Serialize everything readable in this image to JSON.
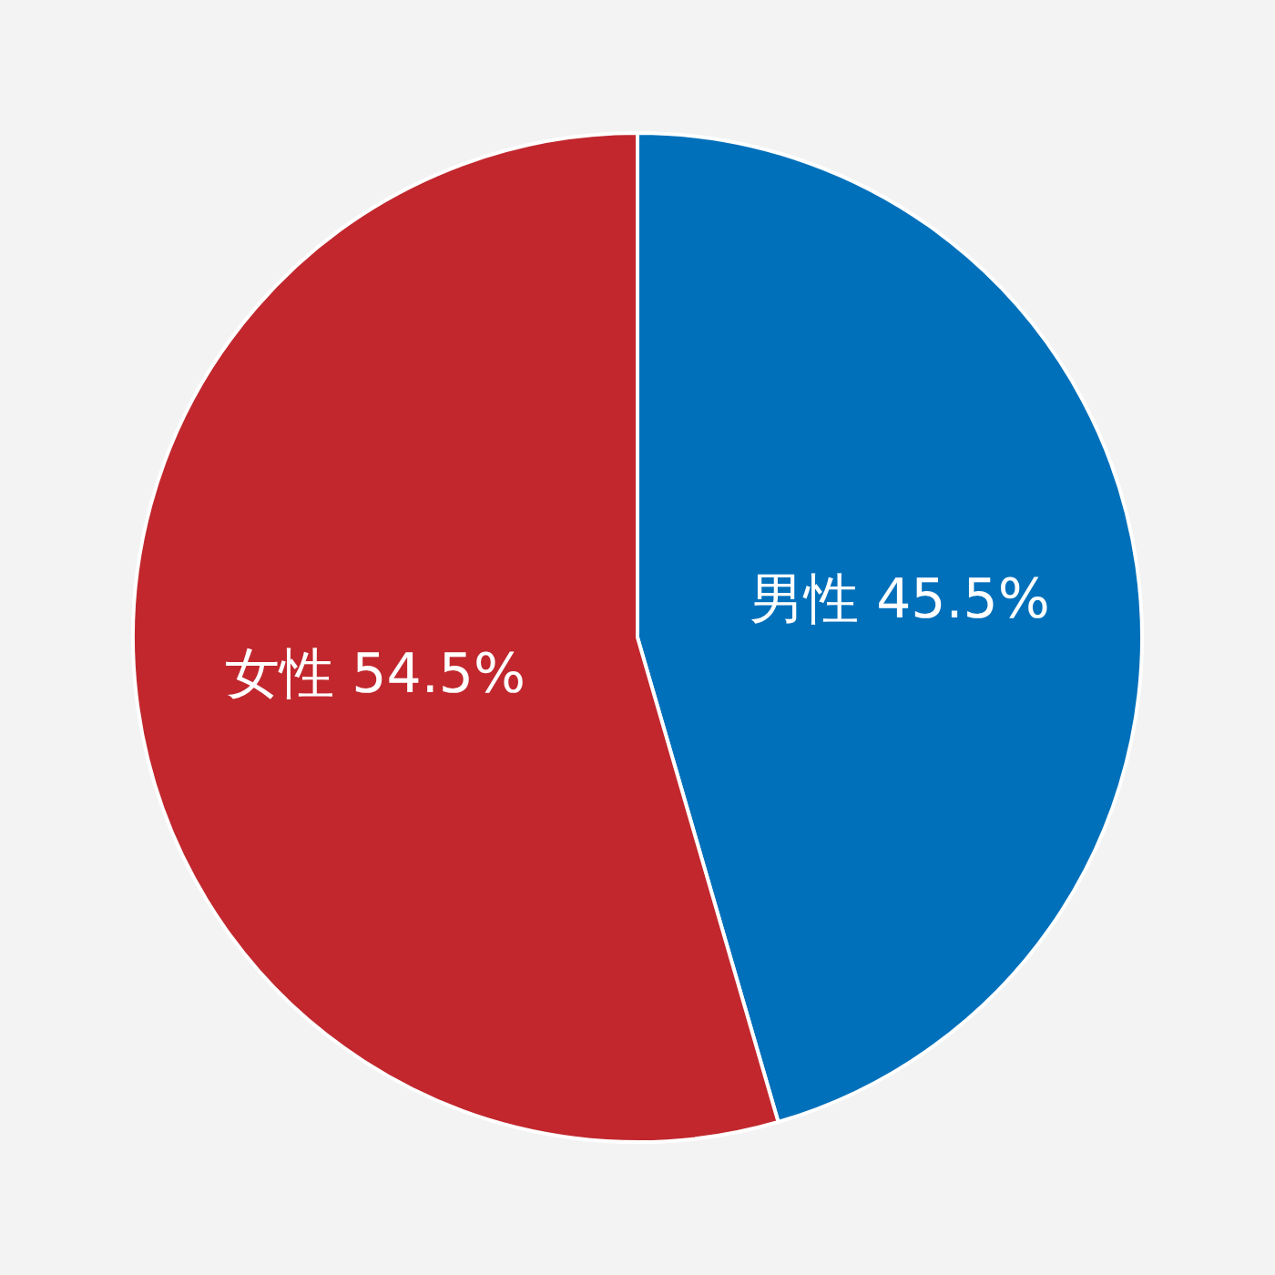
{
  "chart_data": {
    "type": "pie",
    "categories": [
      "男性",
      "女性"
    ],
    "values": [
      45.5,
      54.5
    ],
    "colors": [
      "#0070bb",
      "#c1272d"
    ],
    "value_labels": [
      "45.5%",
      "54.5%"
    ]
  }
}
